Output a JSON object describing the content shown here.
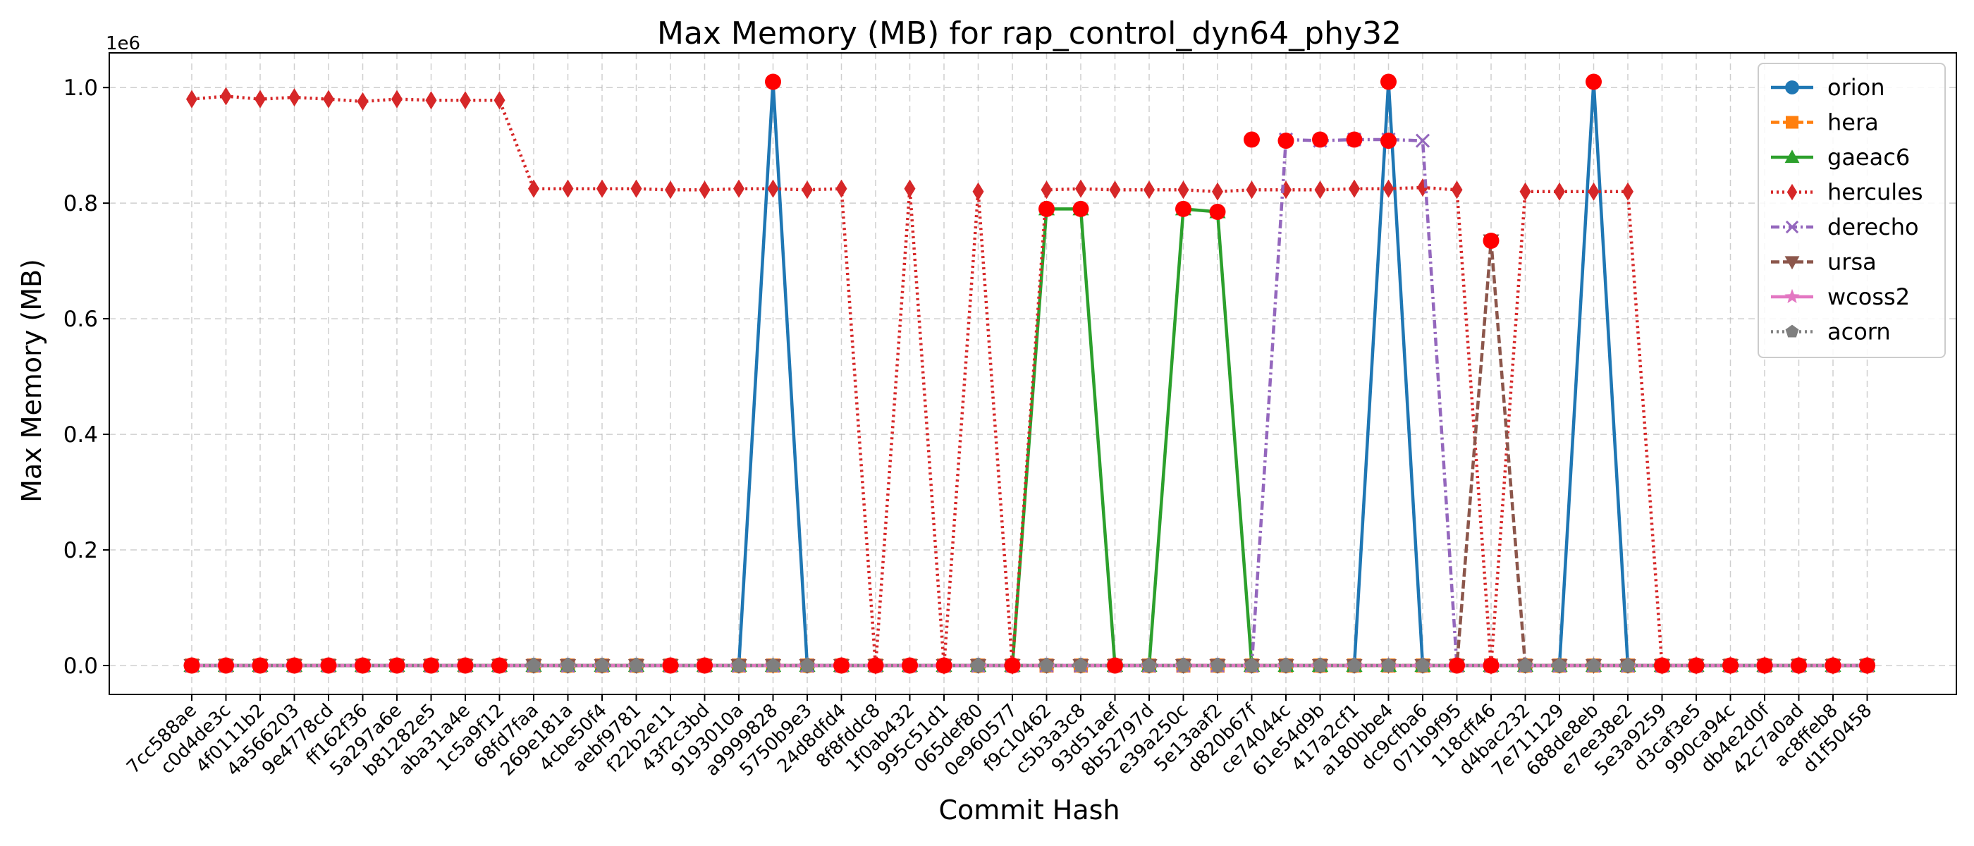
{
  "chart_data": {
    "type": "line",
    "title": "Max Memory (MB) for rap_control_dyn64_phy32",
    "xlabel": "Commit Hash",
    "ylabel": "Max Memory (MB)",
    "y_offset_label": "1e6",
    "ylim": [
      -50000,
      1060000
    ],
    "yticks": [
      0,
      200000,
      400000,
      600000,
      800000,
      1000000
    ],
    "ytick_labels": [
      "0.0",
      "0.2",
      "0.4",
      "0.6",
      "0.8",
      "1.0"
    ],
    "grid": true,
    "legend_position": "top-right",
    "categories": [
      "7cc588ae",
      "c0d4de3c",
      "4f0111b2",
      "4a566203",
      "9e4778cd",
      "ff162f36",
      "5a297a6e",
      "b81282e5",
      "aba31a4e",
      "1c5a9f12",
      "68fd7faa",
      "269e181a",
      "4cbe50f4",
      "aebf9781",
      "f22b2e11",
      "43f2c3bd",
      "9193010a",
      "a9999828",
      "5750b9e3",
      "24d8dfd4",
      "8f8fddc8",
      "1f0ab432",
      "995c51d1",
      "065def80",
      "0e960577",
      "f9c10462",
      "c5b3a3c8",
      "93d51aef",
      "8b52797d",
      "e39a250c",
      "5e13aaf2",
      "d820b67f",
      "ce74044c",
      "61e54d9b",
      "417a2cf1",
      "a180bbe4",
      "dc9cfba6",
      "071b9f95",
      "118cff46",
      "d4bac232",
      "7e711129",
      "688de8eb",
      "e7ee38e2",
      "5e3a9259",
      "d3caf3e5",
      "990ca94c",
      "db4e2d0f",
      "42c7a0ad",
      "ac8ffeb8",
      "d1f50458"
    ],
    "series": [
      {
        "name": "orion",
        "color": "#1f77b4",
        "dash": "",
        "marker": "circle",
        "values": [
          0,
          0,
          0,
          0,
          0,
          0,
          0,
          0,
          0,
          0,
          0,
          0,
          0,
          0,
          0,
          0,
          0,
          1010000,
          0,
          0,
          0,
          0,
          0,
          0,
          0,
          0,
          0,
          0,
          0,
          0,
          0,
          0,
          0,
          0,
          0,
          1010000,
          0,
          0,
          0,
          0,
          0,
          1010000,
          0,
          0,
          0,
          0,
          0,
          0,
          0,
          0
        ]
      },
      {
        "name": "hera",
        "color": "#ff7f0e",
        "dash": "12 5",
        "marker": "square",
        "values": [
          0,
          0,
          0,
          0,
          0,
          0,
          0,
          0,
          0,
          0,
          0,
          0,
          0,
          0,
          0,
          0,
          0,
          0,
          0,
          0,
          0,
          0,
          0,
          0,
          0,
          0,
          0,
          0,
          0,
          0,
          0,
          0,
          0,
          0,
          0,
          0,
          0,
          0,
          0,
          0,
          0,
          0,
          0,
          0,
          0,
          0,
          0,
          0,
          0,
          0
        ]
      },
      {
        "name": "gaeac6",
        "color": "#2ca02c",
        "dash": "",
        "marker": "triangle",
        "values": [
          0,
          0,
          0,
          0,
          0,
          0,
          0,
          0,
          0,
          0,
          0,
          0,
          0,
          0,
          0,
          0,
          0,
          0,
          0,
          0,
          0,
          0,
          0,
          0,
          0,
          790000,
          790000,
          0,
          0,
          790000,
          785000,
          0,
          0,
          0,
          0,
          0,
          0,
          0,
          0,
          0,
          0,
          0,
          0,
          0,
          0,
          0,
          0,
          0,
          0,
          0
        ]
      },
      {
        "name": "hercules",
        "color": "#d62728",
        "dash": "3 5",
        "marker": "diamond",
        "values": [
          980000,
          985000,
          980000,
          983000,
          980000,
          976000,
          980000,
          978000,
          978000,
          978000,
          825000,
          825000,
          825000,
          825000,
          823000,
          823000,
          825000,
          825000,
          823000,
          825000,
          0,
          825000,
          0,
          820000,
          0,
          823000,
          825000,
          823000,
          823000,
          823000,
          820000,
          823000,
          823000,
          823000,
          825000,
          825000,
          827000,
          823000,
          0,
          820000,
          820000,
          820000,
          820000,
          0,
          0,
          0,
          0,
          0,
          0,
          0
        ]
      },
      {
        "name": "derecho",
        "color": "#9467bd",
        "dash": "12 5 3 5",
        "marker": "x",
        "values": [
          0,
          0,
          0,
          0,
          0,
          0,
          0,
          0,
          0,
          0,
          0,
          0,
          0,
          0,
          0,
          0,
          0,
          0,
          0,
          0,
          0,
          0,
          0,
          0,
          0,
          0,
          0,
          0,
          0,
          0,
          0,
          0,
          910000,
          908000,
          910000,
          910000,
          908000,
          0,
          0,
          0,
          0,
          0,
          0,
          0,
          0,
          0,
          0,
          0,
          0,
          0
        ]
      },
      {
        "name": "ursa",
        "color": "#8c564b",
        "dash": "12 5",
        "marker": "triangle-down",
        "values": [
          0,
          0,
          0,
          0,
          0,
          0,
          0,
          0,
          0,
          0,
          0,
          0,
          0,
          0,
          0,
          0,
          0,
          0,
          0,
          0,
          0,
          0,
          0,
          0,
          0,
          0,
          0,
          0,
          0,
          0,
          0,
          0,
          0,
          0,
          0,
          0,
          0,
          0,
          735000,
          0,
          0,
          0,
          0,
          0,
          0,
          0,
          0,
          0,
          0,
          0
        ]
      },
      {
        "name": "wcoss2",
        "color": "#e377c2",
        "dash": "",
        "marker": "star",
        "values": [
          0,
          0,
          0,
          0,
          0,
          0,
          0,
          0,
          0,
          0,
          0,
          0,
          0,
          0,
          0,
          0,
          0,
          0,
          0,
          0,
          0,
          0,
          0,
          0,
          0,
          0,
          0,
          0,
          0,
          0,
          0,
          0,
          0,
          0,
          0,
          0,
          0,
          0,
          0,
          0,
          0,
          0,
          0,
          0,
          0,
          0,
          0,
          0,
          0,
          0
        ]
      },
      {
        "name": "acorn",
        "color": "#7f7f7f",
        "dash": "3 5",
        "marker": "pentagon",
        "values": [
          0,
          0,
          0,
          0,
          0,
          0,
          0,
          0,
          0,
          0,
          0,
          0,
          0,
          0,
          0,
          0,
          0,
          0,
          0,
          0,
          0,
          0,
          0,
          0,
          0,
          0,
          0,
          0,
          0,
          0,
          0,
          0,
          0,
          0,
          0,
          0,
          0,
          0,
          0,
          0,
          0,
          0,
          0,
          0,
          0,
          0,
          0,
          0,
          0,
          0
        ]
      }
    ],
    "highlight_points_color": "#ff0000",
    "highlight_points": [
      {
        "x": "7cc588ae",
        "y": 0
      },
      {
        "x": "c0d4de3c",
        "y": 0
      },
      {
        "x": "4f0111b2",
        "y": 0
      },
      {
        "x": "4a566203",
        "y": 0
      },
      {
        "x": "9e4778cd",
        "y": 0
      },
      {
        "x": "ff162f36",
        "y": 0
      },
      {
        "x": "5a297a6e",
        "y": 0
      },
      {
        "x": "b81282e5",
        "y": 0
      },
      {
        "x": "aba31a4e",
        "y": 0
      },
      {
        "x": "1c5a9f12",
        "y": 0
      },
      {
        "x": "f22b2e11",
        "y": 0
      },
      {
        "x": "43f2c3bd",
        "y": 0
      },
      {
        "x": "a9999828",
        "y": 1010000
      },
      {
        "x": "24d8dfd4",
        "y": 0
      },
      {
        "x": "8f8fddc8",
        "y": 0
      },
      {
        "x": "1f0ab432",
        "y": 0
      },
      {
        "x": "995c51d1",
        "y": 0
      },
      {
        "x": "0e960577",
        "y": 0
      },
      {
        "x": "f9c10462",
        "y": 790000
      },
      {
        "x": "c5b3a3c8",
        "y": 790000
      },
      {
        "x": "93d51aef",
        "y": 0
      },
      {
        "x": "e39a250c",
        "y": 790000
      },
      {
        "x": "5e13aaf2",
        "y": 785000
      },
      {
        "x": "d820b67f",
        "y": 910000
      },
      {
        "x": "ce74044c",
        "y": 908000
      },
      {
        "x": "61e54d9b",
        "y": 910000
      },
      {
        "x": "417a2cf1",
        "y": 910000
      },
      {
        "x": "a180bbe4",
        "y": 1010000
      },
      {
        "x": "a180bbe4",
        "y": 908000
      },
      {
        "x": "071b9f95",
        "y": 0
      },
      {
        "x": "118cff46",
        "y": 735000
      },
      {
        "x": "118cff46",
        "y": 0
      },
      {
        "x": "688de8eb",
        "y": 1010000
      },
      {
        "x": "5e3a9259",
        "y": 0
      },
      {
        "x": "d3caf3e5",
        "y": 0
      },
      {
        "x": "990ca94c",
        "y": 0
      },
      {
        "x": "db4e2d0f",
        "y": 0
      },
      {
        "x": "42c7a0ad",
        "y": 0
      },
      {
        "x": "ac8ffeb8",
        "y": 0
      },
      {
        "x": "d1f50458",
        "y": 0
      }
    ]
  }
}
